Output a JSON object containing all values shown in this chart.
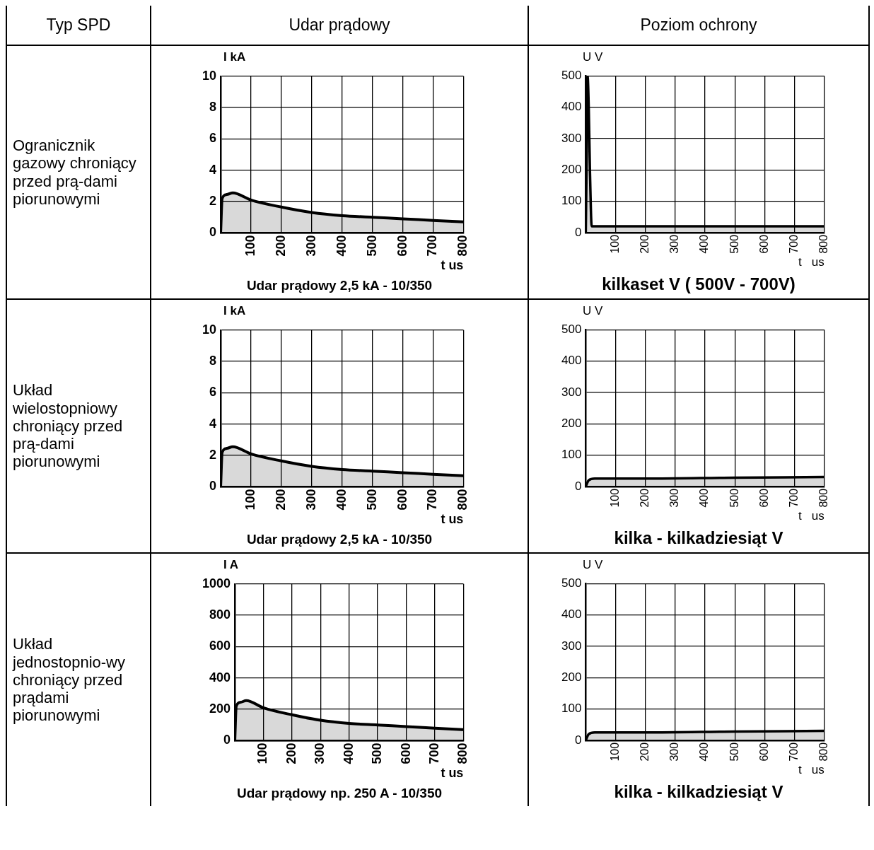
{
  "chart_data": [
    {
      "type": "other",
      "annotations": [
        "Typ SPD",
        "Udar prądowy",
        "Poziom ochrony"
      ]
    },
    {
      "type": "other",
      "annotations": [
        "Ogranicznik gazowy chroniący przed prą-dami piorunowymi"
      ]
    },
    {
      "type": "area",
      "ylabel": "I kA",
      "xlabel": "t us",
      "annotations": [
        "Udar prądowy 2,5 kA - 10/350"
      ],
      "x": [
        0,
        5,
        20,
        40,
        100,
        200,
        300,
        400,
        500,
        600,
        700,
        800
      ],
      "series": [
        {
          "color": "#000000",
          "values": [
            0,
            2.2,
            2.45,
            2.55,
            2.1,
            1.65,
            1.3,
            1.1,
            1.0,
            0.9,
            0.8,
            0.7
          ]
        }
      ],
      "xlim": [
        0,
        800
      ],
      "xticks": [
        100,
        200,
        300,
        400,
        500,
        600,
        700,
        800
      ],
      "ylim": [
        0,
        10
      ],
      "yticks": [
        0,
        2,
        4,
        6,
        8,
        10
      ],
      "grid": true
    },
    {
      "type": "area",
      "ylabel": "U   V",
      "xlabel": "t   us",
      "annotations": [
        "kilkaset V ( 500V - 700V)"
      ],
      "x": [
        0,
        3,
        6,
        10,
        14,
        20,
        100,
        800
      ],
      "series": [
        {
          "color": "#000000",
          "values": [
            0,
            230,
            500,
            400,
            200,
            20,
            20,
            20
          ]
        }
      ],
      "xlim": [
        0,
        800
      ],
      "xticks": [
        100,
        200,
        300,
        400,
        500,
        600,
        700,
        800
      ],
      "ylim": [
        0,
        500
      ],
      "yticks": [
        0,
        100,
        200,
        300,
        400,
        500
      ],
      "grid": true
    },
    {
      "type": "other",
      "annotations": [
        "Układ wielostopniowy chroniący  przed prą-dami piorunowymi"
      ]
    },
    {
      "type": "area",
      "ylabel": "I kA",
      "xlabel": "t us",
      "annotations": [
        "Udar prądowy 2,5 kA - 10/350"
      ],
      "x": [
        0,
        5,
        20,
        40,
        100,
        200,
        300,
        400,
        500,
        600,
        700,
        800
      ],
      "series": [
        {
          "color": "#000000",
          "values": [
            0,
            2.2,
            2.45,
            2.55,
            2.1,
            1.65,
            1.3,
            1.1,
            1.0,
            0.9,
            0.8,
            0.7
          ]
        }
      ],
      "xlim": [
        0,
        800
      ],
      "xticks": [
        100,
        200,
        300,
        400,
        500,
        600,
        700,
        800
      ],
      "ylim": [
        0,
        10
      ],
      "yticks": [
        0,
        2,
        4,
        6,
        8,
        10
      ],
      "grid": true
    },
    {
      "type": "area",
      "ylabel": "U   V",
      "xlabel": "t   us",
      "annotations": [
        "kilka - kilkadziesiąt V"
      ],
      "x": [
        0,
        10,
        30,
        200,
        500,
        800
      ],
      "series": [
        {
          "color": "#000000",
          "values": [
            0,
            20,
            25,
            25,
            28,
            30
          ]
        }
      ],
      "xlim": [
        0,
        800
      ],
      "xticks": [
        100,
        200,
        300,
        400,
        500,
        600,
        700,
        800
      ],
      "ylim": [
        0,
        500
      ],
      "yticks": [
        0,
        100,
        200,
        300,
        400,
        500
      ],
      "grid": true
    },
    {
      "type": "other",
      "annotations": [
        "Układ jednostopnio-wy chroniący  przed prądami piorunowymi"
      ]
    },
    {
      "type": "area",
      "ylabel": "I A",
      "xlabel": "t us",
      "annotations": [
        "Udar prądowy np. 250 A - 10/350"
      ],
      "x": [
        0,
        5,
        20,
        40,
        100,
        200,
        300,
        400,
        500,
        600,
        700,
        800
      ],
      "series": [
        {
          "color": "#000000",
          "values": [
            0,
            220,
            245,
            255,
            210,
            165,
            130,
            110,
            100,
            90,
            80,
            70
          ]
        }
      ],
      "xlim": [
        0,
        800
      ],
      "xticks": [
        100,
        200,
        300,
        400,
        500,
        600,
        700,
        800
      ],
      "ylim": [
        0,
        1000
      ],
      "yticks": [
        0,
        200,
        400,
        600,
        800,
        1000
      ],
      "grid": true
    },
    {
      "type": "area",
      "ylabel": "U   V",
      "xlabel": "t   us",
      "annotations": [
        "kilka - kilkadziesiąt V"
      ],
      "x": [
        0,
        10,
        30,
        200,
        500,
        800
      ],
      "series": [
        {
          "color": "#000000",
          "values": [
            0,
            20,
            25,
            25,
            28,
            30
          ]
        }
      ],
      "xlim": [
        0,
        800
      ],
      "xticks": [
        100,
        200,
        300,
        400,
        500,
        600,
        700,
        800
      ],
      "ylim": [
        0,
        500
      ],
      "yticks": [
        0,
        100,
        200,
        300,
        400,
        500
      ],
      "grid": true
    }
  ]
}
